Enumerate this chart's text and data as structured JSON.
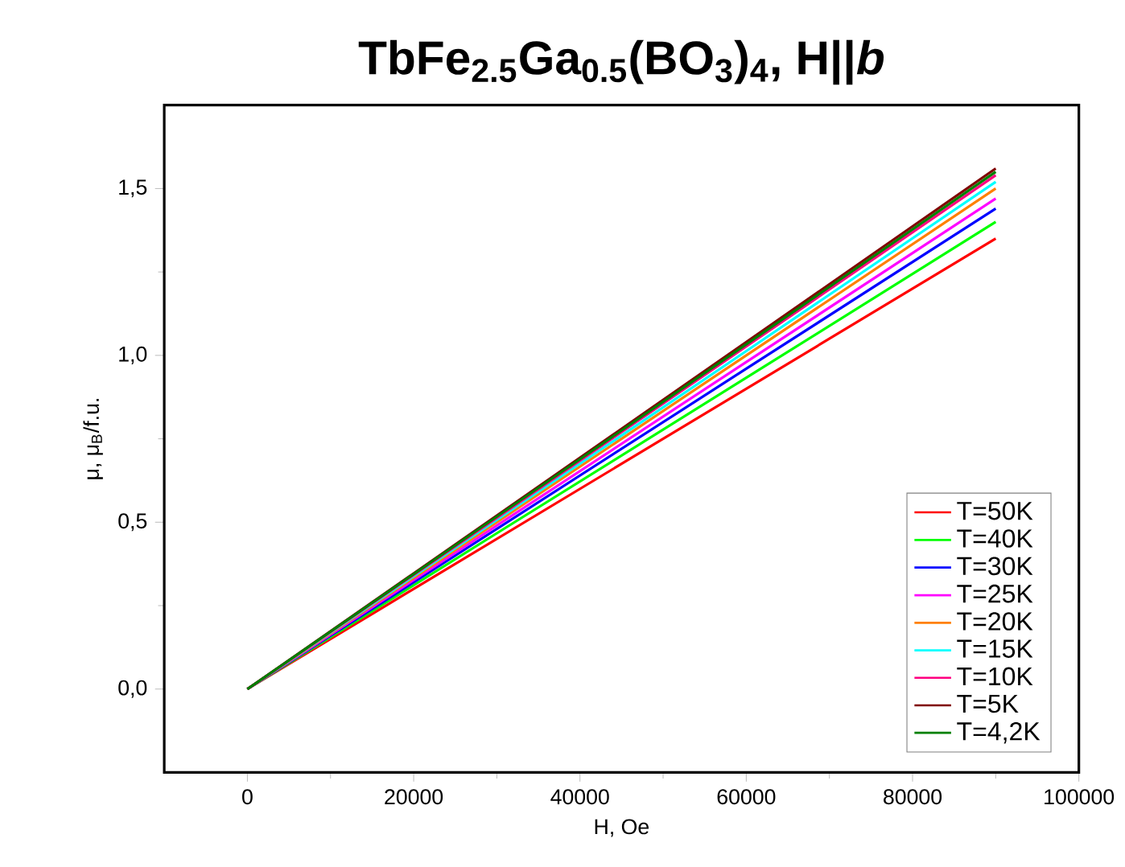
{
  "chart_data": {
    "type": "line",
    "title": "TbFe$_{2.5}$Ga$_{0.5}$(BO$_{3}$)$_{4}$, H||*b*",
    "xlabel": "H, Oe",
    "ylabel": "μ, μ$_{B}$/f.u.",
    "x": [
      0,
      30000,
      60000,
      90000
    ],
    "xlim": [
      -10000,
      100000
    ],
    "ylim": [
      -0.25,
      1.75
    ],
    "xticks": [
      0,
      20000,
      40000,
      60000,
      80000,
      100000
    ],
    "yticks": [
      {
        "value": 0,
        "label": "0,0"
      },
      {
        "value": 0.5,
        "label": "0,5"
      },
      {
        "value": 1,
        "label": "1,0"
      },
      {
        "value": 1.5,
        "label": "1,5"
      }
    ],
    "legend": "bottom right",
    "marker": "none",
    "line_style": "solid",
    "grid": false,
    "series": [
      {
        "name": "T=50K",
        "color": "#ff0000",
        "values": [
          0,
          0.45,
          0.9,
          1.35
        ]
      },
      {
        "name": "T=40K",
        "color": "#00ff00",
        "values": [
          0,
          0.467,
          0.933,
          1.4
        ]
      },
      {
        "name": "T=30K",
        "color": "#0000ff",
        "values": [
          0,
          0.48,
          0.96,
          1.44
        ]
      },
      {
        "name": "T=25K",
        "color": "#ff00ff",
        "values": [
          0,
          0.49,
          0.98,
          1.47
        ]
      },
      {
        "name": "T=20K",
        "color": "#ff8000",
        "values": [
          0,
          0.5,
          1.0,
          1.5
        ]
      },
      {
        "name": "T=15K",
        "color": "#00ffff",
        "values": [
          0,
          0.507,
          1.013,
          1.52
        ]
      },
      {
        "name": "T=10K",
        "color": "#ff0080",
        "values": [
          0,
          0.513,
          1.027,
          1.54
        ]
      },
      {
        "name": "T=5K",
        "color": "#800000",
        "values": [
          0,
          0.52,
          1.04,
          1.56
        ]
      },
      {
        "name": "T=4,2K",
        "color": "#008000",
        "values": [
          0,
          0.517,
          1.033,
          1.55
        ]
      }
    ]
  }
}
